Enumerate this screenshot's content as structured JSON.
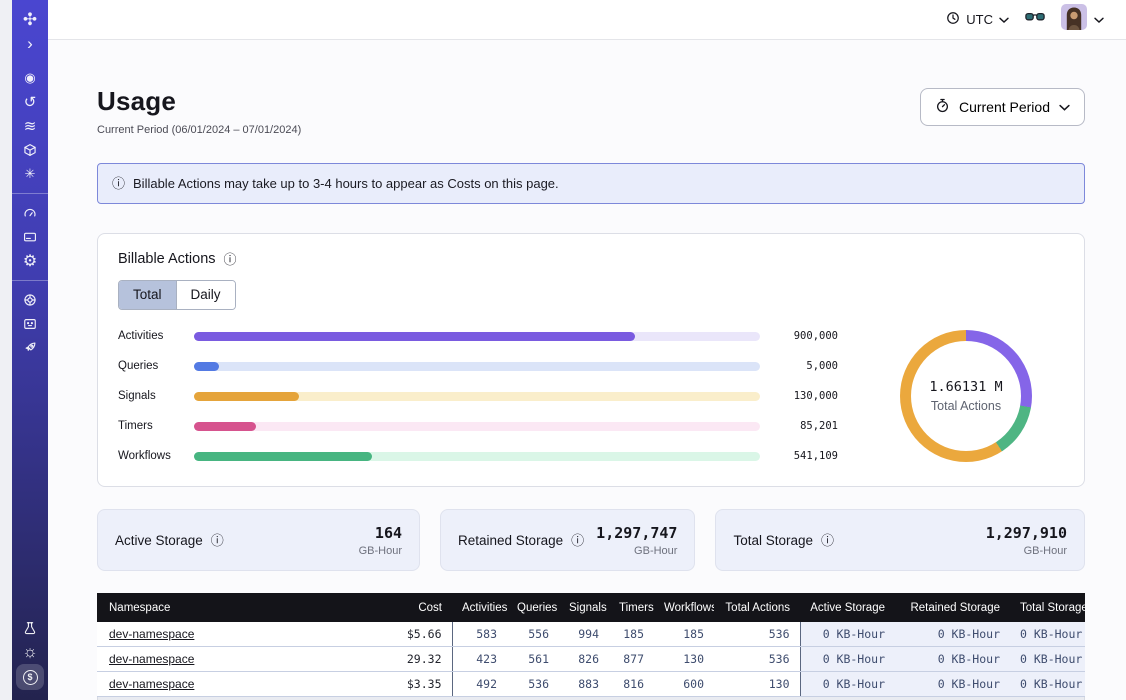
{
  "header": {
    "timezone_label": "UTC"
  },
  "sidebar": {
    "primary": [
      "temporal-logo",
      "chevron-right"
    ],
    "nav_group_1": [
      "eye",
      "history",
      "layers",
      "cube",
      "asterisk"
    ],
    "nav_group_2": [
      "gauge",
      "credit-card",
      "gear"
    ],
    "nav_group_3": [
      "lifebuoy",
      "terminal",
      "rocket"
    ],
    "bottom": [
      "flask",
      "sun",
      "dollar"
    ]
  },
  "page": {
    "title": "Usage",
    "subtitle": "Current Period (06/01/2024 – 07/01/2024)",
    "period_button_label": "Current Period"
  },
  "banner": {
    "text": "Billable Actions may take up to 3-4 hours to appear as Costs on this page."
  },
  "billable": {
    "title": "Billable Actions",
    "tabs": [
      {
        "label": "Total",
        "selected": true
      },
      {
        "label": "Daily",
        "selected": false
      }
    ]
  },
  "chart_data": [
    {
      "type": "bar",
      "orientation": "horizontal",
      "title": "Billable Actions",
      "categories": [
        "Activities",
        "Queries",
        "Signals",
        "Timers",
        "Workflows"
      ],
      "values": [
        900000,
        5000,
        130000,
        85201,
        541109
      ],
      "value_labels": [
        "900,000",
        "5,000",
        "130,000",
        "85,201",
        "541,109"
      ],
      "bar_fill_percent": [
        78,
        4.5,
        18.5,
        11,
        31.5
      ],
      "bar_colors": [
        "#7a5be0",
        "#537ae3",
        "#e5a43b",
        "#d6538e",
        "#47b581"
      ],
      "track_colors": [
        "#eae6fa",
        "#dbe4f8",
        "#faeecb",
        "#fbe8f4",
        "#daf6e7"
      ]
    },
    {
      "type": "pie",
      "subtype": "donut",
      "center_value": "1.66131 M",
      "center_label": "Total Actions",
      "segments": [
        {
          "name": "activities",
          "color": "#8565e8",
          "start_deg": 0,
          "end_deg": 100
        },
        {
          "name": "workflows",
          "color": "#4eb583",
          "start_deg": 100,
          "end_deg": 147
        },
        {
          "name": "signals",
          "color": "#eba83d",
          "start_deg": 147,
          "end_deg": 360
        }
      ]
    }
  ],
  "storage_cards": [
    {
      "label": "Active Storage",
      "value": "164",
      "unit": "GB-Hour"
    },
    {
      "label": "Retained Storage",
      "value": "1,297,747",
      "unit": "GB-Hour"
    },
    {
      "label": "Total Storage",
      "value": "1,297,910",
      "unit": "GB-Hour"
    }
  ],
  "table": {
    "columns": [
      "Namespace",
      "Cost",
      "Activities",
      "Queries",
      "Signals",
      "Timers",
      "Workflows",
      "Total Actions",
      "Active Storage",
      "Retained Storage",
      "Total Storage"
    ],
    "rows": [
      {
        "namespace": "dev-namespace",
        "cost": "$5.66",
        "activities": "583",
        "queries": "556",
        "signals": "994",
        "timers": "185",
        "workflows": "185",
        "total_actions": "536",
        "active_storage": "0 KB-Hour",
        "retained_storage": "0 KB-Hour",
        "total_storage": "0 KB-Hour"
      },
      {
        "namespace": "dev-namespace",
        "cost": "29.32",
        "activities": "423",
        "queries": "561",
        "signals": "826",
        "timers": "877",
        "workflows": "130",
        "total_actions": "536",
        "active_storage": "0 KB-Hour",
        "retained_storage": "0 KB-Hour",
        "total_storage": "0 KB-Hour"
      },
      {
        "namespace": "dev-namespace",
        "cost": "$3.35",
        "activities": "492",
        "queries": "536",
        "signals": "883",
        "timers": "816",
        "workflows": "600",
        "total_actions": "130",
        "active_storage": "0 KB-Hour",
        "retained_storage": "0 KB-Hour",
        "total_storage": "0 KB-Hour"
      }
    ]
  }
}
